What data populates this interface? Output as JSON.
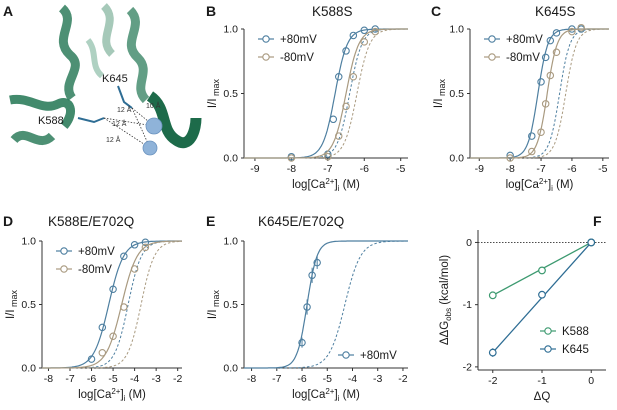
{
  "colors": {
    "plus80": "#4e7fa0",
    "minus80": "#a99a80",
    "k588": "#3d9a70",
    "k645": "#2e6d94",
    "helix": "#2e7d5c",
    "ion": "#8fb3d9"
  },
  "panel_a": {
    "letter": "A",
    "residues": [
      "K645",
      "K588"
    ],
    "distances": [
      "12 Å",
      "10 Å",
      "12 Å",
      "12 Å"
    ]
  },
  "chart_data": [
    {
      "panel": "B",
      "type": "line",
      "title": "K588S",
      "xlabel": "log[Ca²⁺]ᵢ (M)",
      "ylabel": "I/I max",
      "xlim": [
        -9.3,
        -4.8
      ],
      "ylim": [
        0,
        1.0
      ],
      "xticks": [
        "-9",
        "-8",
        "-7",
        "-6",
        "-5"
      ],
      "yticks": [
        "0.0",
        "0.5",
        "1.0"
      ],
      "legend": [
        "+80mV",
        "-80mV"
      ],
      "series": [
        {
          "name": "+80mV",
          "x": [
            -8.0,
            -7.0,
            -6.85,
            -6.7,
            -6.5,
            -6.3,
            -6.0,
            -5.7
          ],
          "y": [
            0.01,
            0.03,
            0.3,
            0.63,
            0.83,
            0.95,
            0.99,
            1.0
          ],
          "fit_ec50": -6.8,
          "fit_hill": 2.6
        },
        {
          "name": "-80mV",
          "x": [
            -8.0,
            -7.0,
            -6.7,
            -6.5,
            -6.3,
            -6.0,
            -5.7
          ],
          "y": [
            0.0,
            0.01,
            0.17,
            0.4,
            0.63,
            0.9,
            0.98
          ],
          "fit_ec50": -6.5,
          "fit_hill": 2.5
        }
      ],
      "reference_fits": [
        {
          "ec50": -6.4,
          "hill": 2.6
        },
        {
          "ec50": -6.2,
          "hill": 2.5
        }
      ]
    },
    {
      "panel": "C",
      "type": "line",
      "title": "K645S",
      "xlabel": "log[Ca²⁺]ᵢ (M)",
      "ylabel": "I/I max",
      "xlim": [
        -9.3,
        -4.8
      ],
      "ylim": [
        0,
        1.0
      ],
      "xticks": [
        "-9",
        "-8",
        "-7",
        "-6",
        "-5"
      ],
      "yticks": [
        "0.0",
        "0.5",
        "1.0"
      ],
      "legend": [
        "+80mV",
        "-80mV"
      ],
      "series": [
        {
          "name": "+80mV",
          "x": [
            -8.0,
            -7.3,
            -7.0,
            -6.85,
            -6.7,
            -6.5,
            -6.0,
            -5.7
          ],
          "y": [
            0.02,
            0.17,
            0.59,
            0.78,
            0.91,
            0.97,
            1.0,
            1.0
          ],
          "fit_ec50": -7.1,
          "fit_hill": 2.7
        },
        {
          "name": "-80mV",
          "x": [
            -8.0,
            -7.3,
            -7.0,
            -6.85,
            -6.7,
            -6.5,
            -6.0,
            -5.7
          ],
          "y": [
            0.0,
            0.05,
            0.2,
            0.42,
            0.64,
            0.82,
            0.98,
            1.01
          ],
          "fit_ec50": -6.8,
          "fit_hill": 2.7
        }
      ],
      "reference_fits": [
        {
          "ec50": -6.4,
          "hill": 2.6
        },
        {
          "ec50": -6.2,
          "hill": 2.5
        }
      ]
    },
    {
      "panel": "D",
      "type": "line",
      "title": "K588E/E702Q",
      "xlabel": "log[Ca²⁺]ᵢ (M)",
      "ylabel": "I/I max",
      "xlim": [
        -8.3,
        -1.8
      ],
      "ylim": [
        0,
        1.0
      ],
      "xticks": [
        "-8",
        "-7",
        "-6",
        "-5",
        "-4",
        "-3",
        "-2"
      ],
      "yticks": [
        "0.0",
        "0.5",
        "1.0"
      ],
      "legend": [
        "+80mV",
        "-80mV"
      ],
      "series": [
        {
          "name": "+80mV",
          "x": [
            -6.0,
            -5.5,
            -5.0,
            -4.5,
            -4.0,
            -3.5
          ],
          "y": [
            0.07,
            0.32,
            0.62,
            0.88,
            0.97,
            0.99
          ],
          "fit_ec50": -5.2,
          "fit_hill": 1.25
        },
        {
          "name": "-80mV",
          "x": [
            -5.5,
            -5.0,
            -4.5,
            -4.0,
            -3.5
          ],
          "y": [
            0.12,
            0.25,
            0.48,
            0.78,
            0.95
          ],
          "fit_ec50": -4.6,
          "fit_hill": 1.2
        }
      ],
      "reference_fits": [
        {
          "ec50": -4.3,
          "hill": 1.4
        },
        {
          "ec50": -3.7,
          "hill": 1.4
        }
      ]
    },
    {
      "panel": "E",
      "type": "line",
      "title": "K645E/E702Q",
      "xlabel": "log[Ca²⁺]ᵢ (M)",
      "ylabel": "I/I max",
      "xlim": [
        -8.3,
        -1.8
      ],
      "ylim": [
        0,
        1.0
      ],
      "xticks": [
        "-8",
        "-7",
        "-6",
        "-5",
        "-4",
        "-3",
        "-2"
      ],
      "yticks": [
        "0.0",
        "0.5",
        "1.0"
      ],
      "legend": [
        "+80mV"
      ],
      "series": [
        {
          "name": "+80mV",
          "x": [
            -6.0,
            -5.8,
            -5.6,
            -5.4
          ],
          "y": [
            0.2,
            0.48,
            0.73,
            0.83
          ],
          "fit_ec50": -5.8,
          "fit_hill": 2.2,
          "error": [
            0.04,
            0.06,
            0.06,
            0.05
          ]
        }
      ],
      "reference_fits": [
        {
          "ec50": -4.3,
          "hill": 1.4
        }
      ]
    },
    {
      "panel": "F",
      "type": "scatter",
      "xlabel": "ΔQ",
      "ylabel": "ΔΔG obs (kcal/mol)",
      "xlim": [
        -2.3,
        0.3
      ],
      "ylim": [
        -2.05,
        0.2
      ],
      "xticks": [
        "-2",
        "-1",
        "0"
      ],
      "yticks": [
        "0",
        "-1",
        "-2"
      ],
      "legend": [
        "K588",
        "K645"
      ],
      "series": [
        {
          "name": "K588",
          "x": [
            -2,
            -1,
            0
          ],
          "y": [
            -0.85,
            -0.45,
            0.0
          ],
          "error": [
            0.02,
            0.02,
            0.03
          ]
        },
        {
          "name": "K645",
          "x": [
            -2,
            -1,
            0
          ],
          "y": [
            -1.77,
            -0.84,
            0.0
          ],
          "error": [
            0.07,
            0.03,
            0.05
          ]
        }
      ]
    }
  ]
}
